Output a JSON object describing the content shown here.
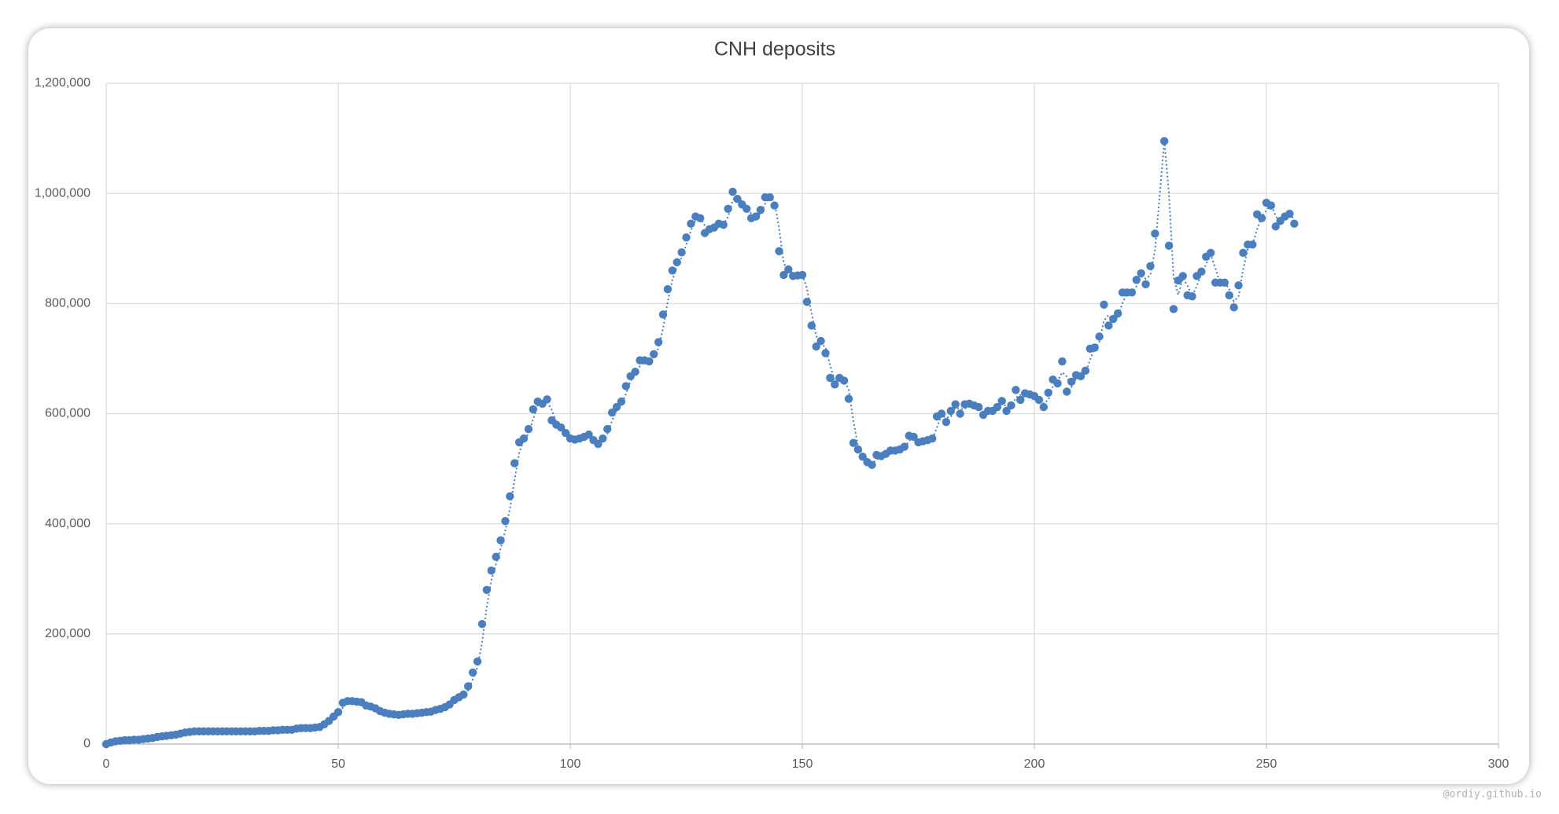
{
  "chart_data": {
    "type": "scatter",
    "title": "CNH deposits",
    "color": "#4a7ebf",
    "grid": true,
    "trendline": {
      "type": "moving-average",
      "period": 2,
      "style": "dotted"
    },
    "xlim": [
      0,
      300
    ],
    "xticks": [
      0,
      50,
      100,
      150,
      200,
      250,
      300
    ],
    "ylim": [
      0,
      1200000
    ],
    "yticks": [
      0,
      {
        "value": 200000,
        "label": "200,000"
      },
      {
        "value": 400000,
        "label": "400,000"
      },
      {
        "value": 600000,
        "label": "600,000"
      },
      {
        "value": 800000,
        "label": "800,000"
      },
      {
        "value": 1000000,
        "label": "1,000,000"
      },
      {
        "value": 1200000,
        "label": "1,200,000"
      }
    ],
    "x": [
      0,
      1,
      2,
      3,
      4,
      5,
      6,
      7,
      8,
      9,
      10,
      11,
      12,
      13,
      14,
      15,
      16,
      17,
      18,
      19,
      20,
      21,
      22,
      23,
      24,
      25,
      26,
      27,
      28,
      29,
      30,
      31,
      32,
      33,
      34,
      35,
      36,
      37,
      38,
      39,
      40,
      41,
      42,
      43,
      44,
      45,
      46,
      47,
      48,
      49,
      50,
      51,
      52,
      53,
      54,
      55,
      56,
      57,
      58,
      59,
      60,
      61,
      62,
      63,
      64,
      65,
      66,
      67,
      68,
      69,
      70,
      71,
      72,
      73,
      74,
      75,
      76,
      77,
      78,
      79,
      80,
      81,
      82,
      83,
      84,
      85,
      86,
      87,
      88,
      89,
      90,
      91,
      92,
      93,
      94,
      95,
      96,
      97,
      98,
      99,
      100,
      101,
      102,
      103,
      104,
      105,
      106,
      107,
      108,
      109,
      110,
      111,
      112,
      113,
      114,
      115,
      116,
      117,
      118,
      119,
      120,
      121,
      122,
      123,
      124,
      125,
      126,
      127,
      128,
      129,
      130,
      131,
      132,
      133,
      134,
      135,
      136,
      137,
      138,
      139,
      140,
      141,
      142,
      143,
      144,
      145,
      146,
      147,
      148,
      149,
      150,
      151,
      152,
      153,
      154,
      155,
      156,
      157,
      158,
      159,
      160,
      161,
      162,
      163,
      164,
      165,
      166,
      167,
      168,
      169,
      170,
      171,
      172,
      173,
      174,
      175,
      176,
      177,
      178,
      179,
      180,
      181,
      182,
      183,
      184,
      185,
      186,
      187,
      188,
      189,
      190,
      191,
      192,
      193,
      194,
      195,
      196,
      197,
      198,
      199,
      200,
      201,
      202,
      203,
      204,
      205,
      206,
      207,
      208,
      209,
      210,
      211,
      212,
      213,
      214,
      215,
      216,
      217,
      218,
      219,
      220,
      221,
      222,
      223,
      224,
      225,
      226,
      227,
      228,
      229,
      230,
      231,
      232,
      233,
      234,
      235,
      236,
      237,
      238,
      239,
      240,
      241,
      242,
      243,
      244,
      245,
      246,
      247,
      248,
      249,
      250,
      251,
      252,
      253,
      254,
      255,
      256
    ],
    "values": [
      0,
      3000,
      5000,
      6000,
      7000,
      7000,
      8000,
      8000,
      9000,
      10000,
      11000,
      13000,
      14000,
      15000,
      16000,
      17000,
      19000,
      21000,
      22000,
      23000,
      23000,
      23000,
      23000,
      23000,
      23000,
      23000,
      23000,
      23000,
      23000,
      23000,
      23000,
      23000,
      23000,
      24000,
      24000,
      24000,
      25000,
      25000,
      26000,
      26000,
      26000,
      28000,
      29000,
      29000,
      29000,
      30000,
      31000,
      36000,
      42000,
      50000,
      58000,
      75000,
      78000,
      78000,
      77000,
      76000,
      70000,
      68000,
      65000,
      60000,
      57000,
      55000,
      54000,
      53000,
      54000,
      55000,
      55000,
      56000,
      57000,
      58000,
      59000,
      62000,
      64000,
      67000,
      72000,
      80000,
      85000,
      90000,
      105000,
      130000,
      150000,
      218000,
      280000,
      315000,
      340000,
      370000,
      405000,
      450000,
      510000,
      548000,
      555000,
      572000,
      608000,
      622000,
      618000,
      626000,
      588000,
      580000,
      575000,
      565000,
      555000,
      553000,
      555000,
      558000,
      562000,
      552000,
      545000,
      555000,
      572000,
      602000,
      612000,
      622000,
      650000,
      668000,
      676000,
      697000,
      697000,
      695000,
      708000,
      730000,
      780000,
      826000,
      860000,
      875000,
      893000,
      920000,
      945000,
      958000,
      955000,
      928000,
      935000,
      938000,
      945000,
      943000,
      972000,
      1003000,
      990000,
      980000,
      972000,
      955000,
      958000,
      970000,
      993000,
      993000,
      978000,
      895000,
      852000,
      862000,
      850000,
      851000,
      852000,
      803000,
      760000,
      722000,
      732000,
      710000,
      665000,
      653000,
      665000,
      660000,
      627000,
      547000,
      535000,
      522000,
      512000,
      507000,
      525000,
      523000,
      527000,
      533000,
      533000,
      535000,
      540000,
      560000,
      558000,
      548000,
      550000,
      552000,
      555000,
      595000,
      600000,
      585000,
      605000,
      617000,
      600000,
      617000,
      618000,
      615000,
      612000,
      598000,
      605000,
      605000,
      612000,
      623000,
      605000,
      615000,
      643000,
      625000,
      637000,
      635000,
      632000,
      625000,
      612000,
      638000,
      662000,
      655000,
      695000,
      640000,
      658000,
      670000,
      668000,
      678000,
      718000,
      720000,
      740000,
      798000,
      760000,
      772000,
      782000,
      820000,
      820000,
      820000,
      843000,
      855000,
      835000,
      868000,
      927000,
      null,
      1095000,
      905000,
      790000,
      842000,
      850000,
      815000,
      813000,
      850000,
      858000,
      885000,
      892000,
      838000,
      838000,
      838000,
      815000,
      793000,
      833000,
      892000,
      907000,
      907000,
      962000,
      955000,
      983000,
      978000,
      940000,
      950000,
      958000,
      963000,
      945000
    ]
  },
  "watermark": "@ordiy.github.io"
}
